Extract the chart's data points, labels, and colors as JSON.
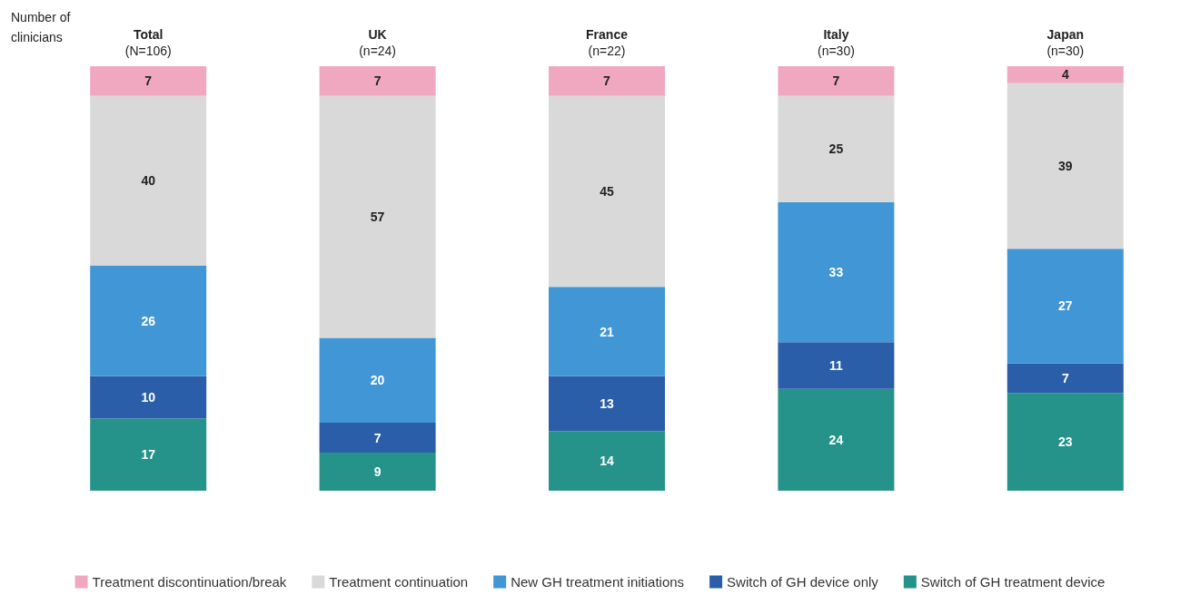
{
  "chart_data": {
    "type": "bar",
    "stacked": true,
    "data_labels": true,
    "legend": "bottom",
    "ylabel": "Number of\nclinicians",
    "categories": [
      "Total\n(N=106)",
      "UK\n(n=24)",
      "France\n(n=22)",
      "Italy\n(n=30)",
      "Japan\n(n=30)"
    ],
    "series": [
      {
        "name": "Switch of GH treatment device",
        "color": "#26938a",
        "values": [
          17,
          9,
          14,
          24,
          23
        ]
      },
      {
        "name": "Switch of GH device only",
        "color": "#2a5ea8",
        "values": [
          10,
          7,
          13,
          11,
          7
        ]
      },
      {
        "name": "New GH treatment initiations",
        "color": "#4196d6",
        "values": [
          26,
          20,
          21,
          33,
          27
        ]
      },
      {
        "name": "Treatment continuation",
        "color": "#d9d9d9",
        "values": [
          40,
          57,
          45,
          25,
          39
        ]
      },
      {
        "name": "Treatment discontinuation/break",
        "color": "#f0a8c0",
        "values": [
          7,
          7,
          7,
          7,
          4
        ]
      }
    ]
  }
}
